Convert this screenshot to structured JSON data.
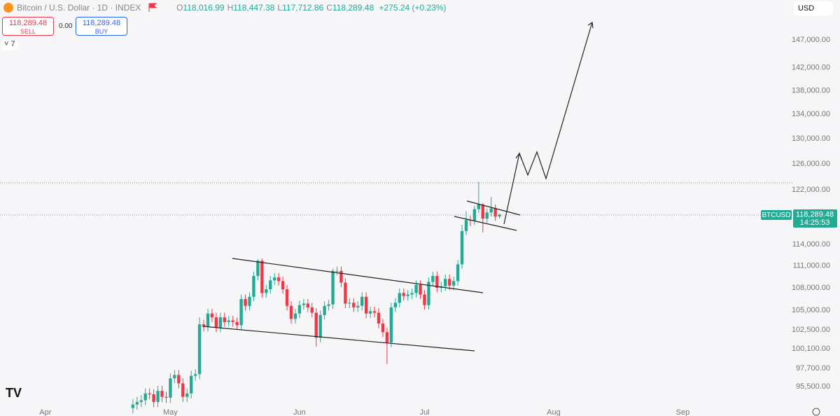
{
  "chart_data": {
    "type": "candlestick",
    "ylim": [
      93210,
      154490
    ],
    "log_scale": true,
    "grid": false,
    "yticks": [
      {
        "value": 147000,
        "label": "147,000.00"
      },
      {
        "value": 142000,
        "label": "142,000.00"
      },
      {
        "value": 138000,
        "label": "138,000.00"
      },
      {
        "value": 134000,
        "label": "134,000.00"
      },
      {
        "value": 130000,
        "label": "130,000.00"
      },
      {
        "value": 126000,
        "label": "126,000.00"
      },
      {
        "value": 122000,
        "label": "122,000.00"
      },
      {
        "value": 114000,
        "label": "114,000.00"
      },
      {
        "value": 111000,
        "label": "111,000.00"
      },
      {
        "value": 108000,
        "label": "108,000.00"
      },
      {
        "value": 105000,
        "label": "105,000.00"
      },
      {
        "value": 102500,
        "label": "102,500.00"
      },
      {
        "value": 100100,
        "label": "100,100.00"
      },
      {
        "value": 97700,
        "label": "97,700.00"
      },
      {
        "value": 95500,
        "label": "95,500.00"
      }
    ],
    "xlim": [
      -31.9,
      158.3
    ],
    "xticks": [
      {
        "value": -21,
        "label": "Apr"
      },
      {
        "value": 9,
        "label": "May"
      },
      {
        "value": 40,
        "label": "Jun"
      },
      {
        "value": 70,
        "label": "Jul"
      },
      {
        "value": 101,
        "label": "Aug"
      },
      {
        "value": 132,
        "label": "Sep"
      }
    ],
    "up_color": "#22ab94",
    "down_color": "#f23645",
    "series": [
      {
        "name": "BTCUSD",
        "open": [
          93000,
          93400,
          93700,
          93900,
          94700,
          94600,
          93700,
          95000,
          94300,
          94200,
          96500,
          96900,
          95900,
          94300,
          94700,
          96800,
          97000,
          103200,
          102900,
          104600,
          104100,
          102800,
          104100,
          103500,
          103700,
          103500,
          103100,
          106500,
          105600,
          106800,
          109600,
          111700,
          107300,
          107800,
          109000,
          109400,
          108900,
          107800,
          105600,
          103900,
          104600,
          105700,
          105900,
          105400,
          104700,
          101500,
          104400,
          105600,
          105800,
          110300,
          110300,
          108700,
          105900,
          106000,
          105400,
          105600,
          106800,
          104600,
          104900,
          104700,
          103300,
          102200,
          100900,
          105400,
          106000,
          107300,
          106900,
          107100,
          107300,
          108400,
          107100,
          105700,
          108800,
          109600,
          108000,
          108200,
          109200,
          108300,
          108900,
          111200,
          115900,
          117500,
          117400,
          119100,
          119800,
          117700,
          118600,
          119200,
          118016.99
        ],
        "high": [
          94000,
          94300,
          94500,
          95300,
          95300,
          95200,
          95600,
          95600,
          94900,
          97100,
          97500,
          97500,
          96500,
          95300,
          97400,
          97600,
          104100,
          103800,
          105200,
          105200,
          104700,
          104700,
          104700,
          104300,
          104300,
          104100,
          107100,
          107100,
          107400,
          110200,
          111900,
          112000,
          108400,
          109600,
          110000,
          110000,
          109500,
          108400,
          106200,
          105200,
          106300,
          106500,
          106500,
          106000,
          105300,
          105000,
          106200,
          106400,
          110600,
          110900,
          110900,
          109300,
          106600,
          106600,
          106200,
          107400,
          107400,
          105500,
          105500,
          105300,
          103900,
          102800,
          106000,
          106600,
          107900,
          107900,
          107700,
          107900,
          109000,
          109000,
          107700,
          109400,
          110200,
          110200,
          108800,
          109800,
          109800,
          109500,
          111800,
          116800,
          118800,
          118100,
          119600,
          123200,
          120000,
          119200,
          120900,
          119800,
          118447.38
        ],
        "low": [
          92400,
          92800,
          93100,
          93300,
          94000,
          93100,
          93100,
          93700,
          93600,
          93600,
          95900,
          95300,
          93700,
          93700,
          94100,
          96200,
          96400,
          102300,
          102300,
          103500,
          102200,
          102200,
          102900,
          102900,
          102900,
          102500,
          102500,
          105000,
          105000,
          106200,
          109000,
          106700,
          106700,
          107200,
          108400,
          108300,
          107200,
          105000,
          103300,
          103300,
          104000,
          105100,
          104800,
          104100,
          100400,
          100900,
          103800,
          105000,
          105200,
          109700,
          108100,
          105300,
          105300,
          104800,
          104800,
          105000,
          104000,
          104000,
          104100,
          102700,
          101600,
          98200,
          100300,
          104800,
          105400,
          106300,
          106300,
          106500,
          106700,
          106500,
          105100,
          105100,
          108200,
          107400,
          107400,
          107600,
          107700,
          107700,
          108300,
          110600,
          115300,
          116600,
          116800,
          118500,
          115700,
          117100,
          118000,
          117400,
          117712.86
        ],
        "close": [
          93400,
          93700,
          93900,
          94700,
          94600,
          93700,
          95000,
          94300,
          94200,
          96500,
          96900,
          95900,
          94300,
          94700,
          96800,
          97000,
          103200,
          102900,
          104600,
          104100,
          102800,
          104100,
          103500,
          103700,
          103500,
          103100,
          106500,
          105600,
          106800,
          109600,
          111700,
          107300,
          107800,
          109000,
          109400,
          108900,
          107800,
          105600,
          103900,
          104600,
          105700,
          105900,
          105400,
          104700,
          101500,
          104400,
          105600,
          105800,
          110300,
          110300,
          108700,
          105900,
          106000,
          105400,
          105600,
          106800,
          104600,
          104900,
          104700,
          103300,
          102200,
          100900,
          105400,
          106000,
          107300,
          106900,
          107100,
          107300,
          108400,
          107100,
          105700,
          108800,
          109600,
          108000,
          108200,
          109200,
          108300,
          108900,
          111200,
          115900,
          117500,
          117400,
          119100,
          119800,
          117700,
          118600,
          119200,
          118000,
          118289.48
        ]
      }
    ],
    "last_price_symbol": "BTCUSD",
    "last_price_label": "118,289.48",
    "countdown": "14:25:53"
  },
  "header": {
    "title": "Bitcoin / U.S. Dollar · 1D · INDEX",
    "ohlc": [
      {
        "key": "O",
        "value": "118,016.99"
      },
      {
        "key": "H",
        "value": "118,447.38"
      },
      {
        "key": "L",
        "value": "117,712.86"
      },
      {
        "key": "C",
        "value": "118,289.48"
      }
    ],
    "change": "+275.24 (+0.23%)"
  },
  "trade": {
    "sell_price": "118,289.48",
    "sell": "SELL",
    "spread": "0.00",
    "buy_price": "118,289.48",
    "buy": "BUY"
  },
  "ui": {
    "indicators_count": "7",
    "currency": "USD"
  }
}
